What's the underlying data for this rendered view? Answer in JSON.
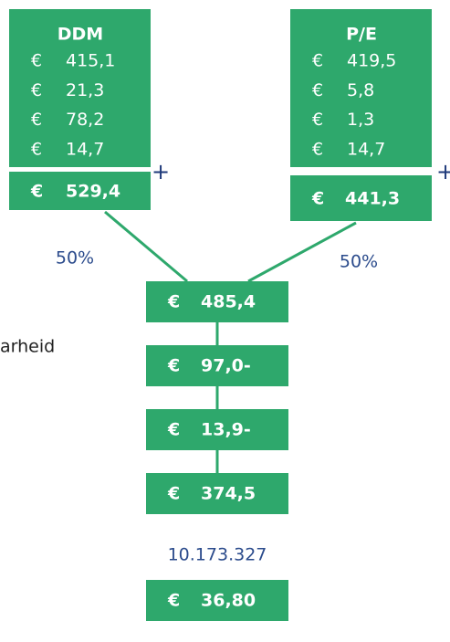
{
  "left_text": "arheid",
  "ddm": {
    "title": "DDM",
    "rows": [
      {
        "currency": "€",
        "amount": "415,1"
      },
      {
        "currency": "€",
        "amount": "21,3"
      },
      {
        "currency": "€",
        "amount": "78,2"
      },
      {
        "currency": "€",
        "amount": "14,7"
      }
    ],
    "plus": "+",
    "total": {
      "currency": "€",
      "amount": "529,4"
    },
    "weight": "50%"
  },
  "pe": {
    "title": "P/E",
    "rows": [
      {
        "currency": "€",
        "amount": "419,5"
      },
      {
        "currency": "€",
        "amount": "5,8"
      },
      {
        "currency": "€",
        "amount": "1,3"
      },
      {
        "currency": "€",
        "amount": "14,7"
      }
    ],
    "plus": "+",
    "total": {
      "currency": "€",
      "amount": "441,3"
    },
    "weight": "50%"
  },
  "chain": [
    {
      "currency": "€",
      "amount": "485,4"
    },
    {
      "currency": "€",
      "amount": "97,0-"
    },
    {
      "currency": "€",
      "amount": "13,9-"
    },
    {
      "currency": "€",
      "amount": "374,5"
    }
  ],
  "shares": "10.173.327",
  "per_share": {
    "currency": "€",
    "amount": "36,80"
  }
}
